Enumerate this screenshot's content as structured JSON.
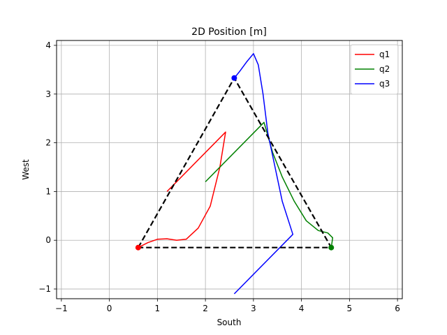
{
  "chart_data": {
    "type": "line",
    "title": "2D Position [m]",
    "xlabel": "South",
    "ylabel": "West",
    "xlim": [
      -1.1,
      6.1
    ],
    "ylim": [
      -1.2,
      4.1
    ],
    "xticks": [
      -1,
      0,
      1,
      2,
      3,
      4,
      5,
      6
    ],
    "yticks": [
      -1,
      0,
      1,
      2,
      3,
      4
    ],
    "xtick_labels": [
      "−1",
      "0",
      "1",
      "2",
      "3",
      "4",
      "5",
      "6"
    ],
    "ytick_labels": [
      "−1",
      "0",
      "1",
      "2",
      "3",
      "4"
    ],
    "grid": true,
    "legend_position": "top-right",
    "series": [
      {
        "name": "q1",
        "color": "#ff0000",
        "points": [
          [
            1.2,
            1.0
          ],
          [
            2.42,
            2.22
          ],
          [
            2.3,
            1.5
          ],
          [
            2.1,
            0.7
          ],
          [
            1.85,
            0.25
          ],
          [
            1.6,
            0.02
          ],
          [
            1.4,
            0.0
          ],
          [
            1.2,
            0.03
          ],
          [
            1.0,
            0.02
          ],
          [
            0.8,
            -0.05
          ],
          [
            0.6,
            -0.15
          ]
        ]
      },
      {
        "name": "q2",
        "color": "#008000",
        "points": [
          [
            2.0,
            1.2
          ],
          [
            3.22,
            2.42
          ],
          [
            3.4,
            1.8
          ],
          [
            3.6,
            1.3
          ],
          [
            3.85,
            0.8
          ],
          [
            4.1,
            0.4
          ],
          [
            4.35,
            0.2
          ],
          [
            4.55,
            0.15
          ],
          [
            4.65,
            0.05
          ],
          [
            4.62,
            -0.15
          ]
        ]
      },
      {
        "name": "q3",
        "color": "#0000ff",
        "points": [
          [
            2.6,
            -1.1
          ],
          [
            3.82,
            0.12
          ],
          [
            3.6,
            0.8
          ],
          [
            3.45,
            1.5
          ],
          [
            3.3,
            2.2
          ],
          [
            3.2,
            3.0
          ],
          [
            3.1,
            3.6
          ],
          [
            3.0,
            3.83
          ],
          [
            2.85,
            3.65
          ],
          [
            2.7,
            3.45
          ],
          [
            2.6,
            3.33
          ]
        ]
      }
    ],
    "reference_path": {
      "style": "dashed",
      "color": "#000000",
      "points": [
        [
          0.6,
          -0.15
        ],
        [
          2.6,
          3.33
        ],
        [
          4.62,
          -0.15
        ],
        [
          0.6,
          -0.15
        ]
      ]
    },
    "markers": [
      {
        "x": 0.6,
        "y": -0.15,
        "color": "#ff0000"
      },
      {
        "x": 4.62,
        "y": -0.15,
        "color": "#008000"
      },
      {
        "x": 2.6,
        "y": 3.33,
        "color": "#0000ff"
      }
    ]
  }
}
